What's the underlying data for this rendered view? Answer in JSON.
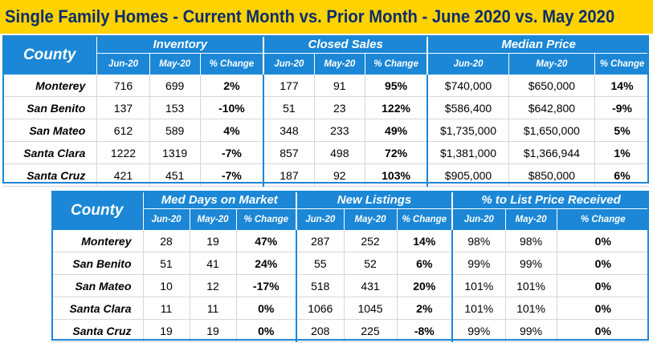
{
  "title": "Single Family Homes - Current Month vs. Prior Month - June 2020 vs. May 2020",
  "colors": {
    "title_bg": "#ffd200",
    "header_bg": "#1b87d6",
    "positive": "#1fb24a",
    "negative": "#e0201c"
  },
  "table1": {
    "county_header": "County",
    "groups": [
      "Inventory",
      "Closed Sales",
      "Median Price"
    ],
    "subheaders": [
      "Jun-20",
      "May-20",
      "% Change"
    ],
    "rows": [
      {
        "county": "Monterey",
        "cells": [
          {
            "v": "716"
          },
          {
            "v": "699"
          },
          {
            "v": "2%",
            "s": "pos"
          },
          {
            "v": "177"
          },
          {
            "v": "91"
          },
          {
            "v": "95%",
            "s": "pos"
          },
          {
            "v": "$740,000"
          },
          {
            "v": "$650,000"
          },
          {
            "v": "14%",
            "s": "pos"
          }
        ]
      },
      {
        "county": "San Benito",
        "cells": [
          {
            "v": "137"
          },
          {
            "v": "153"
          },
          {
            "v": "-10%",
            "s": "neg"
          },
          {
            "v": "51"
          },
          {
            "v": "23"
          },
          {
            "v": "122%",
            "s": "pos"
          },
          {
            "v": "$586,400"
          },
          {
            "v": "$642,800"
          },
          {
            "v": "-9%",
            "s": "neg"
          }
        ]
      },
      {
        "county": "San Mateo",
        "cells": [
          {
            "v": "612"
          },
          {
            "v": "589"
          },
          {
            "v": "4%",
            "s": "pos"
          },
          {
            "v": "348"
          },
          {
            "v": "233"
          },
          {
            "v": "49%",
            "s": "pos"
          },
          {
            "v": "$1,735,000"
          },
          {
            "v": "$1,650,000"
          },
          {
            "v": "5%",
            "s": "pos"
          }
        ]
      },
      {
        "county": "Santa Clara",
        "cells": [
          {
            "v": "1222"
          },
          {
            "v": "1319"
          },
          {
            "v": "-7%",
            "s": "neg"
          },
          {
            "v": "857"
          },
          {
            "v": "498"
          },
          {
            "v": "72%",
            "s": "pos"
          },
          {
            "v": "$1,381,000"
          },
          {
            "v": "$1,366,944"
          },
          {
            "v": "1%",
            "s": "pos"
          }
        ]
      },
      {
        "county": "Santa Cruz",
        "cells": [
          {
            "v": "421"
          },
          {
            "v": "451"
          },
          {
            "v": "-7%",
            "s": "neg"
          },
          {
            "v": "187"
          },
          {
            "v": "92"
          },
          {
            "v": "103%",
            "s": "pos"
          },
          {
            "v": "$905,000"
          },
          {
            "v": "$850,000"
          },
          {
            "v": "6%",
            "s": "pos"
          }
        ]
      }
    ]
  },
  "table2": {
    "county_header": "County",
    "groups": [
      "Med Days on Market",
      "New Listings",
      "% to List Price Received"
    ],
    "subheaders": [
      "Jun-20",
      "May-20",
      "% Change"
    ],
    "rows": [
      {
        "county": "Monterey",
        "cells": [
          {
            "v": "28"
          },
          {
            "v": "19"
          },
          {
            "v": "47%",
            "s": "pos"
          },
          {
            "v": "287"
          },
          {
            "v": "252"
          },
          {
            "v": "14%",
            "s": "pos"
          },
          {
            "v": "98%"
          },
          {
            "v": "98%"
          },
          {
            "v": "0%",
            "s": "zero"
          }
        ]
      },
      {
        "county": "San Benito",
        "cells": [
          {
            "v": "51"
          },
          {
            "v": "41"
          },
          {
            "v": "24%",
            "s": "pos"
          },
          {
            "v": "55"
          },
          {
            "v": "52"
          },
          {
            "v": "6%",
            "s": "pos"
          },
          {
            "v": "99%"
          },
          {
            "v": "99%"
          },
          {
            "v": "0%",
            "s": "zero"
          }
        ]
      },
      {
        "county": "San Mateo",
        "cells": [
          {
            "v": "10"
          },
          {
            "v": "12"
          },
          {
            "v": "-17%",
            "s": "neg"
          },
          {
            "v": "518"
          },
          {
            "v": "431"
          },
          {
            "v": "20%",
            "s": "pos"
          },
          {
            "v": "101%"
          },
          {
            "v": "101%"
          },
          {
            "v": "0%",
            "s": "zero"
          }
        ]
      },
      {
        "county": "Santa Clara",
        "cells": [
          {
            "v": "11"
          },
          {
            "v": "11"
          },
          {
            "v": "0%",
            "s": "zero"
          },
          {
            "v": "1066"
          },
          {
            "v": "1045"
          },
          {
            "v": "2%",
            "s": "pos"
          },
          {
            "v": "101%"
          },
          {
            "v": "101%"
          },
          {
            "v": "0%",
            "s": "zero"
          }
        ]
      },
      {
        "county": "Santa Cruz",
        "cells": [
          {
            "v": "19"
          },
          {
            "v": "19"
          },
          {
            "v": "0%",
            "s": "zero"
          },
          {
            "v": "208"
          },
          {
            "v": "225"
          },
          {
            "v": "-8%",
            "s": "neg"
          },
          {
            "v": "99%"
          },
          {
            "v": "99%"
          },
          {
            "v": "0%",
            "s": "zero"
          }
        ]
      }
    ]
  }
}
